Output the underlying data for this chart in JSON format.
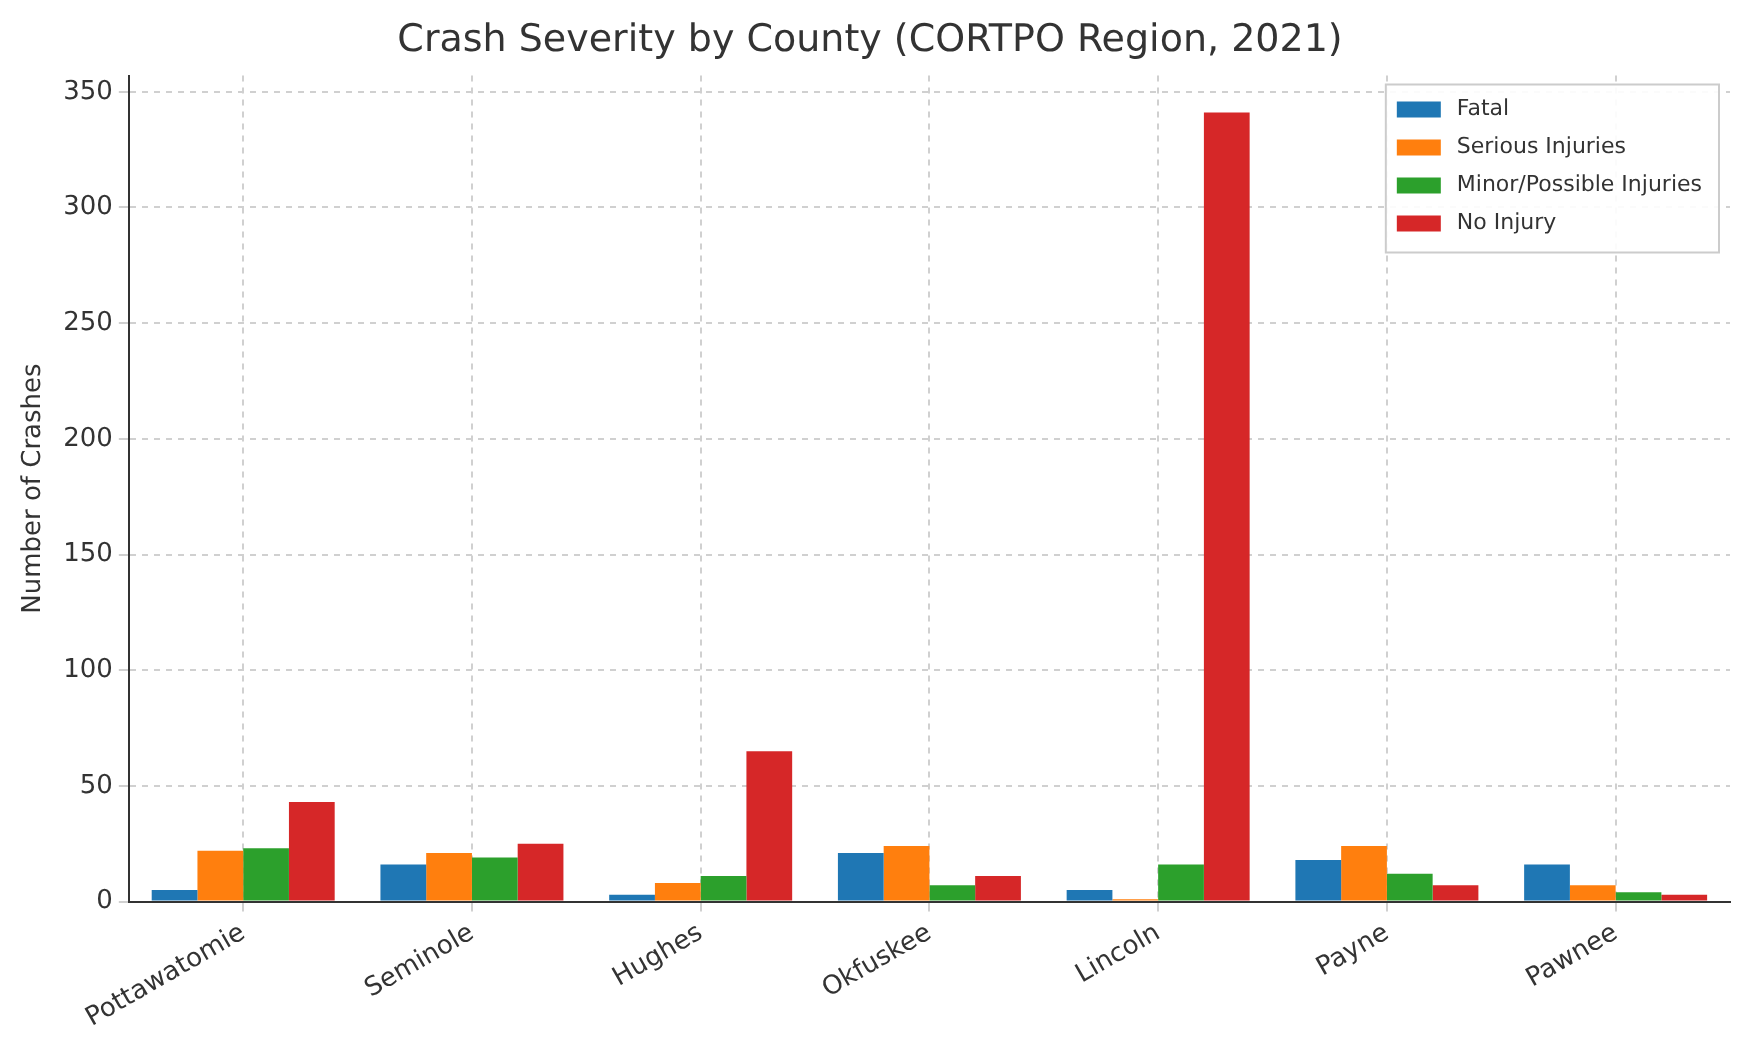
{
  "chart_data": {
    "type": "bar",
    "title": "Crash Severity by County (CORTPO Region, 2021)",
    "ylabel": "Number of Crashes",
    "categories": [
      "Pottawatomie",
      "Seminole",
      "Hughes",
      "Okfuskee",
      "Lincoln",
      "Payne",
      "Pawnee"
    ],
    "series": [
      {
        "name": "Fatal",
        "color": "#1f77b4",
        "values": [
          5,
          16,
          3,
          21,
          5,
          18,
          16
        ]
      },
      {
        "name": "Serious Injuries",
        "color": "#ff7f0e",
        "values": [
          22,
          21,
          8,
          24,
          1,
          24,
          7
        ]
      },
      {
        "name": "Minor/Possible Injuries",
        "color": "#2ca02c",
        "values": [
          23,
          19,
          11,
          7,
          16,
          12,
          4
        ]
      },
      {
        "name": "No Injury",
        "color": "#d62728",
        "values": [
          43,
          25,
          65,
          11,
          341,
          7,
          3
        ]
      }
    ],
    "ylim": [
      0,
      357
    ],
    "yticks": [
      0,
      50,
      100,
      150,
      200,
      250,
      300,
      350
    ],
    "grid": true,
    "legend": "top right"
  }
}
